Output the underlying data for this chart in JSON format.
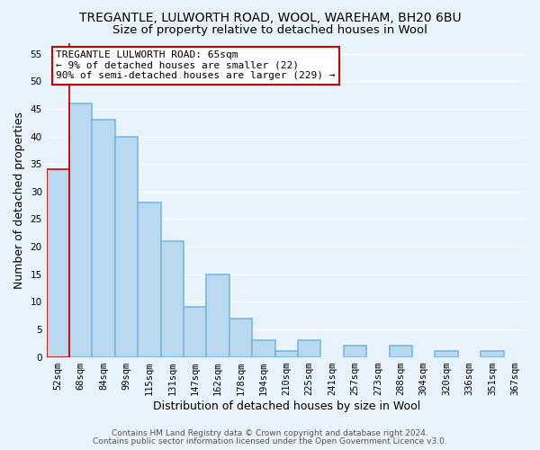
{
  "title": "TREGANTLE, LULWORTH ROAD, WOOL, WAREHAM, BH20 6BU",
  "subtitle": "Size of property relative to detached houses in Wool",
  "xlabel": "Distribution of detached houses by size in Wool",
  "ylabel": "Number of detached properties",
  "bin_labels": [
    "52sqm",
    "68sqm",
    "84sqm",
    "99sqm",
    "115sqm",
    "131sqm",
    "147sqm",
    "162sqm",
    "178sqm",
    "194sqm",
    "210sqm",
    "225sqm",
    "241sqm",
    "257sqm",
    "273sqm",
    "288sqm",
    "304sqm",
    "320sqm",
    "336sqm",
    "351sqm",
    "367sqm"
  ],
  "bar_heights": [
    34,
    46,
    43,
    40,
    28,
    21,
    9,
    15,
    7,
    3,
    1,
    3,
    0,
    2,
    0,
    2,
    0,
    1,
    0,
    1,
    0
  ],
  "bar_color": "#b8d9f0",
  "bar_edge_color": "#7ab8e0",
  "highlight_bar_index": 0,
  "highlight_edge_color": "#cc0000",
  "ylim": [
    0,
    57
  ],
  "yticks": [
    0,
    5,
    10,
    15,
    20,
    25,
    30,
    35,
    40,
    45,
    50,
    55
  ],
  "annotation_title": "TREGANTLE LULWORTH ROAD: 65sqm",
  "annotation_line1": "← 9% of detached houses are smaller (22)",
  "annotation_line2": "90% of semi-detached houses are larger (229) →",
  "annotation_box_color": "#ffffff",
  "annotation_box_edge": "#cc0000",
  "vline_color": "#cc0000",
  "footer_line1": "Contains HM Land Registry data © Crown copyright and database right 2024.",
  "footer_line2": "Contains public sector information licensed under the Open Government Licence v3.0.",
  "background_color": "#e8f3fb",
  "plot_bg_color": "#e8f3fb",
  "grid_color": "#ffffff",
  "title_fontsize": 10,
  "subtitle_fontsize": 9.5,
  "axis_label_fontsize": 9,
  "tick_fontsize": 7.5,
  "annotation_fontsize": 8,
  "footer_fontsize": 6.5
}
